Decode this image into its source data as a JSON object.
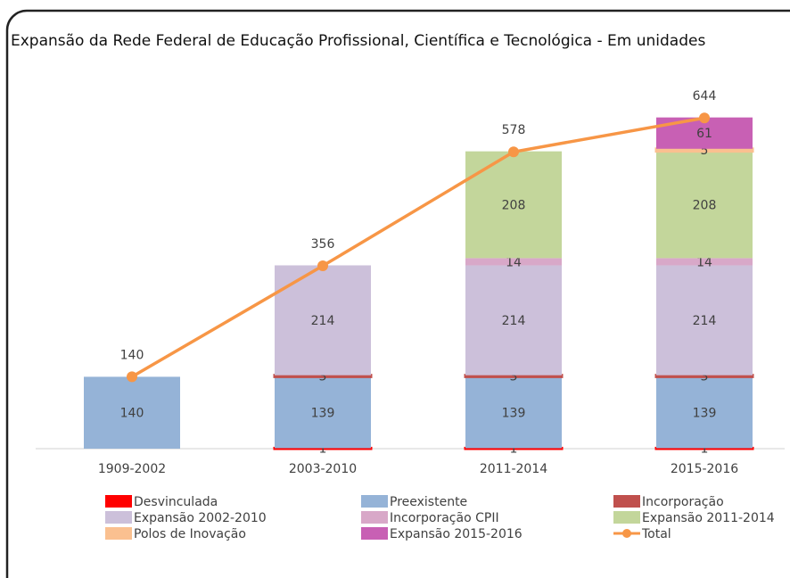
{
  "chart_data": {
    "type": "stacked-bar",
    "title": "Expansão da Rede Federal de Educação Profissional, Científica e Tecnológica - Em unidades",
    "categories": [
      "1909-2002",
      "2003-2010",
      "2011-2014",
      "2015-2016"
    ],
    "series": [
      {
        "name": "Desvinculada",
        "color": "#ff0000",
        "values": [
          null,
          1,
          1,
          1
        ]
      },
      {
        "name": "Preexistente",
        "color": "#95b3d7",
        "values": [
          140,
          139,
          139,
          139
        ]
      },
      {
        "name": "Incorporação",
        "color": "#c0504d",
        "values": [
          null,
          3,
          3,
          3
        ]
      },
      {
        "name": "Expansão 2002-2010",
        "color": "#ccc0da",
        "values": [
          null,
          214,
          214,
          214
        ]
      },
      {
        "name": "Incorporação CPII",
        "color": "#d8a8c8",
        "values": [
          null,
          null,
          14,
          14
        ]
      },
      {
        "name": "Expansão 2011-2014",
        "color": "#c3d69b",
        "values": [
          null,
          null,
          208,
          208
        ]
      },
      {
        "name": "Polos de Inovação",
        "color": "#fac090",
        "values": [
          null,
          null,
          null,
          5
        ]
      },
      {
        "name": "Expansão 2015-2016",
        "color": "#c860b4",
        "values": [
          null,
          null,
          null,
          61
        ]
      }
    ],
    "line_series": {
      "name": "Total",
      "color": "#f79646",
      "values": [
        140,
        356,
        578,
        644
      ]
    },
    "ylim": [
      0,
      700
    ]
  }
}
